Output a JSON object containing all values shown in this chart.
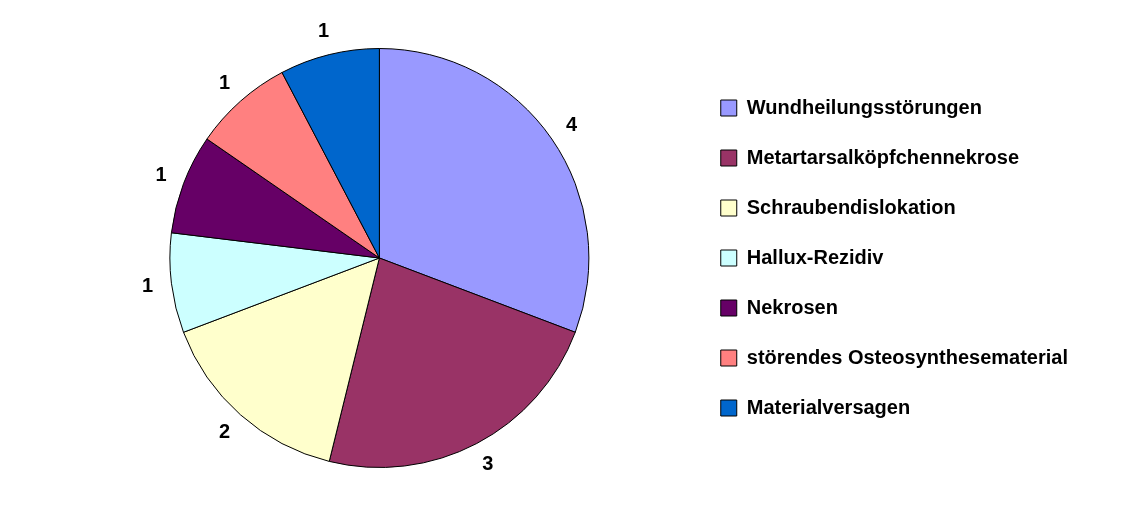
{
  "chart_data": {
    "type": "pie",
    "categories": [
      "Wundheilungsstörungen",
      "Metartarsalköpfchennekrose",
      "Schraubendislokation",
      "Hallux-Rezidiv",
      "Nekrosen",
      "störendes Osteosynthesematerial",
      "Materialversagen"
    ],
    "values": [
      4,
      3,
      2,
      1,
      1,
      1,
      1
    ],
    "colors": [
      "#9999ff",
      "#993366",
      "#ffffcc",
      "#ccffff",
      "#660066",
      "#ff8080",
      "#0066cc"
    ],
    "data_labels": true,
    "legend": "right"
  }
}
